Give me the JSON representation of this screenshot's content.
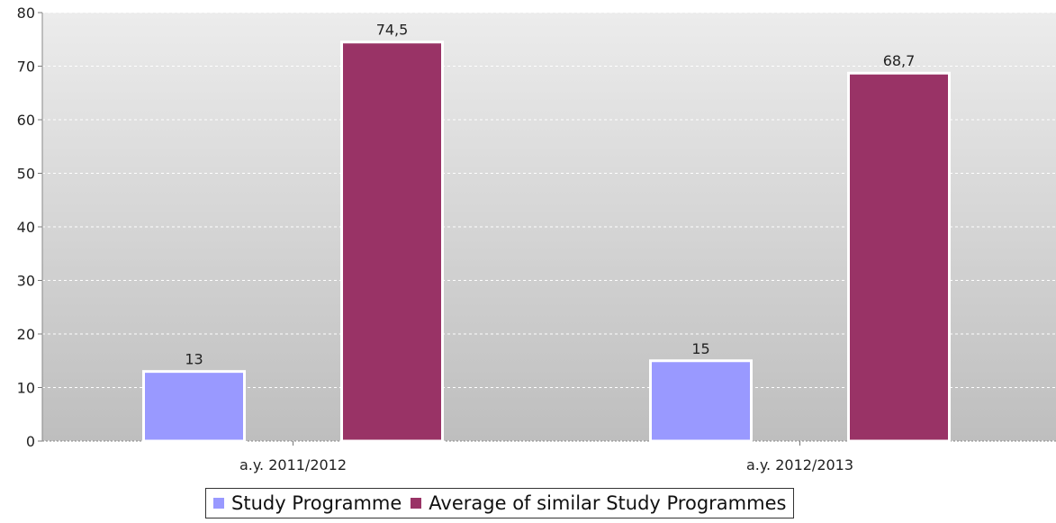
{
  "chart_data": {
    "type": "bar",
    "title": "",
    "xlabel": "",
    "ylabel": "",
    "categories": [
      "a.y. 2011/2012",
      "a.y. 2012/2013"
    ],
    "series": [
      {
        "name": "Study Programme",
        "values": [
          13,
          15
        ],
        "labels": [
          "13",
          "15"
        ],
        "color": "#9999ff"
      },
      {
        "name": "Average of similar Study Programmes",
        "values": [
          74.5,
          68.7
        ],
        "labels": [
          "74,5",
          "68,7"
        ],
        "color": "#993366"
      }
    ],
    "ylim": [
      0,
      80
    ],
    "yticks": [
      "0",
      "10",
      "20",
      "30",
      "40",
      "50",
      "60",
      "70",
      "80"
    ],
    "grid": true,
    "legend_position": "bottom-center",
    "background_gradient": [
      "#ececec",
      "#bebebe"
    ]
  }
}
